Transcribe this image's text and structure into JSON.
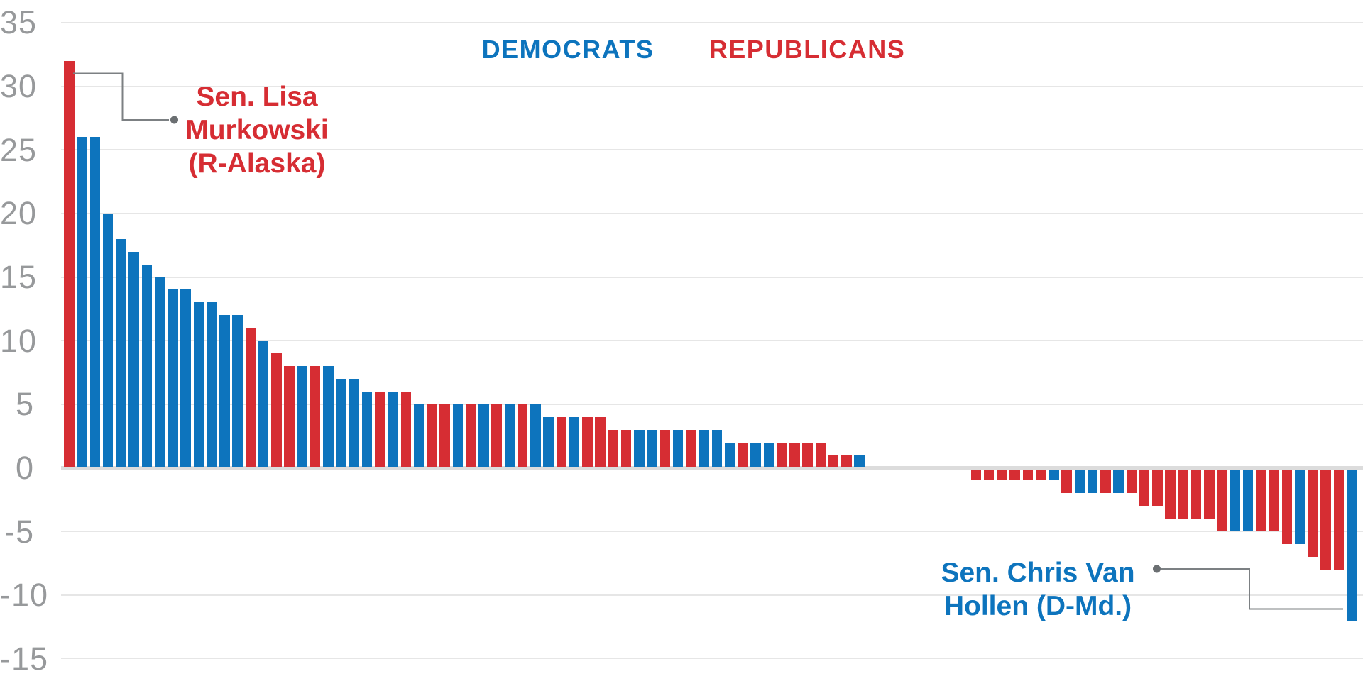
{
  "chart_data": {
    "type": "bar",
    "title": "",
    "description": "100 bars (one per U.S. senator) sorted from highest to lowest value, colored by party; bars with value 0 are not visible",
    "legend": [
      {
        "label": "DEMOCRATS",
        "party": "D"
      },
      {
        "label": "REPUBLICANS",
        "party": "R"
      }
    ],
    "party_colors": {
      "D": "#0d74bd",
      "R": "#d62d33"
    },
    "axis": {
      "yticks": [
        35,
        30,
        25,
        20,
        15,
        10,
        5,
        0,
        -5,
        -10,
        -15
      ],
      "ylim": [
        -15,
        35
      ],
      "grid": true,
      "tick_color": "#97999b"
    },
    "values": [
      [
        "R",
        32
      ],
      [
        "D",
        26
      ],
      [
        "D",
        26
      ],
      [
        "D",
        20
      ],
      [
        "D",
        18
      ],
      [
        "D",
        17
      ],
      [
        "D",
        16
      ],
      [
        "D",
        15
      ],
      [
        "D",
        14
      ],
      [
        "D",
        14
      ],
      [
        "D",
        13
      ],
      [
        "D",
        13
      ],
      [
        "D",
        12
      ],
      [
        "D",
        12
      ],
      [
        "R",
        11
      ],
      [
        "D",
        10
      ],
      [
        "R",
        9
      ],
      [
        "R",
        8
      ],
      [
        "D",
        8
      ],
      [
        "R",
        8
      ],
      [
        "D",
        8
      ],
      [
        "D",
        7
      ],
      [
        "D",
        7
      ],
      [
        "D",
        6
      ],
      [
        "R",
        6
      ],
      [
        "D",
        6
      ],
      [
        "R",
        6
      ],
      [
        "D",
        5
      ],
      [
        "R",
        5
      ],
      [
        "R",
        5
      ],
      [
        "D",
        5
      ],
      [
        "R",
        5
      ],
      [
        "D",
        5
      ],
      [
        "R",
        5
      ],
      [
        "D",
        5
      ],
      [
        "R",
        5
      ],
      [
        "D",
        5
      ],
      [
        "D",
        4
      ],
      [
        "R",
        4
      ],
      [
        "D",
        4
      ],
      [
        "R",
        4
      ],
      [
        "R",
        4
      ],
      [
        "R",
        3
      ],
      [
        "R",
        3
      ],
      [
        "D",
        3
      ],
      [
        "D",
        3
      ],
      [
        "R",
        3
      ],
      [
        "D",
        3
      ],
      [
        "R",
        3
      ],
      [
        "D",
        3
      ],
      [
        "D",
        3
      ],
      [
        "D",
        2
      ],
      [
        "R",
        2
      ],
      [
        "D",
        2
      ],
      [
        "D",
        2
      ],
      [
        "R",
        2
      ],
      [
        "R",
        2
      ],
      [
        "R",
        2
      ],
      [
        "R",
        2
      ],
      [
        "R",
        1
      ],
      [
        "R",
        1
      ],
      [
        "D",
        1
      ],
      [
        "",
        0
      ],
      [
        "",
        0
      ],
      [
        "",
        0
      ],
      [
        "",
        0
      ],
      [
        "",
        0
      ],
      [
        "",
        0
      ],
      [
        "",
        0
      ],
      [
        "",
        0
      ],
      [
        "R",
        -1
      ],
      [
        "R",
        -1
      ],
      [
        "R",
        -1
      ],
      [
        "R",
        -1
      ],
      [
        "R",
        -1
      ],
      [
        "R",
        -1
      ],
      [
        "D",
        -1
      ],
      [
        "R",
        -2
      ],
      [
        "D",
        -2
      ],
      [
        "D",
        -2
      ],
      [
        "R",
        -2
      ],
      [
        "D",
        -2
      ],
      [
        "R",
        -2
      ],
      [
        "R",
        -3
      ],
      [
        "R",
        -3
      ],
      [
        "R",
        -4
      ],
      [
        "R",
        -4
      ],
      [
        "R",
        -4
      ],
      [
        "R",
        -4
      ],
      [
        "R",
        -5
      ],
      [
        "D",
        -5
      ],
      [
        "D",
        -5
      ],
      [
        "R",
        -5
      ],
      [
        "R",
        -5
      ],
      [
        "R",
        -6
      ],
      [
        "D",
        -6
      ],
      [
        "R",
        -7
      ],
      [
        "R",
        -8
      ],
      [
        "R",
        -8
      ],
      [
        "D",
        -12
      ]
    ],
    "annotations": [
      {
        "id": "murkowski",
        "lines": [
          "Sen. Lisa",
          "Murkowski",
          "(R-Alaska)"
        ],
        "color": "#d62d33",
        "points_to": "first bar (+32)"
      },
      {
        "id": "van-hollen",
        "lines": [
          "Sen. Chris Van",
          "Hollen (D-Md.)"
        ],
        "color": "#0d74bd",
        "points_to": "last bar (-12)"
      }
    ]
  }
}
